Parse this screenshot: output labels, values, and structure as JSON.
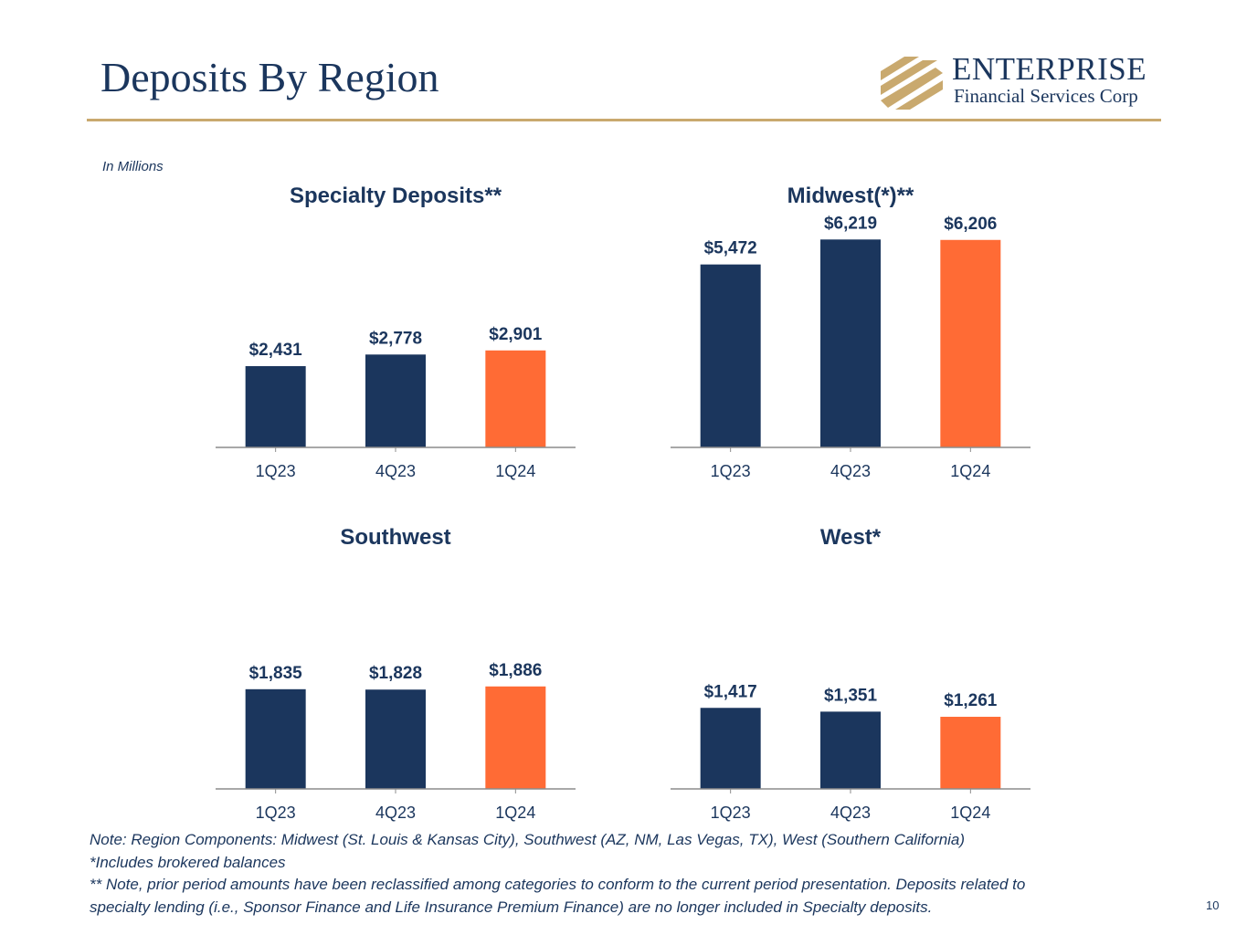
{
  "slide": {
    "title": "Deposits By Region",
    "units_label": "In Millions",
    "page_number": "10",
    "logo": {
      "name": "ENTERPRISE",
      "subtitle": "Financial Services Corp",
      "icon": "enterprise-logo-mark-icon",
      "colors": {
        "mark": "#c9a96e",
        "text": "#1b365d"
      }
    },
    "notes": [
      "Note: Region Components: Midwest (St. Louis & Kansas City), Southwest (AZ, NM, Las Vegas, TX), West (Southern California)",
      "*Includes brokered balances",
      "** Note, prior period amounts have been reclassified among categories to conform to the current period presentation. Deposits related to",
      "specialty lending (i.e., Sponsor Finance and Life Insurance Premium Finance) are no longer included in Specialty deposits."
    ]
  },
  "colors": {
    "navy": "#1b365d",
    "orange": "#ff6b35",
    "accent_rule": "#c9a96e",
    "axis": "#8c8c8c",
    "tick_text": "#1b365d"
  },
  "chart_data": [
    {
      "type": "bar",
      "title": "Specialty Deposits**",
      "categories": [
        "1Q23",
        "4Q23",
        "1Q24"
      ],
      "values": [
        2431,
        2778,
        2901
      ],
      "labels": [
        "$2,431",
        "$2,778",
        "$2,901"
      ],
      "ylim": [
        0,
        6500
      ],
      "grid": false,
      "legend": "none",
      "bar_colors": [
        "#1b365d",
        "#1b365d",
        "#ff6b35"
      ]
    },
    {
      "type": "bar",
      "title": "Midwest(*)**",
      "categories": [
        "1Q23",
        "4Q23",
        "1Q24"
      ],
      "values": [
        5472,
        6219,
        6206
      ],
      "labels": [
        "$5,472",
        "$6,219",
        "$6,206"
      ],
      "ylim": [
        0,
        6500
      ],
      "grid": false,
      "legend": "none",
      "bar_colors": [
        "#1b365d",
        "#1b365d",
        "#ff6b35"
      ]
    },
    {
      "type": "bar",
      "title": "Southwest",
      "categories": [
        "1Q23",
        "4Q23",
        "1Q24"
      ],
      "values": [
        1835,
        1828,
        1886
      ],
      "labels": [
        "$1,835",
        "$1,828",
        "$1,886"
      ],
      "ylim": [
        0,
        4000
      ],
      "grid": false,
      "legend": "none",
      "bar_colors": [
        "#1b365d",
        "#1b365d",
        "#ff6b35"
      ]
    },
    {
      "type": "bar",
      "title": "West*",
      "categories": [
        "1Q23",
        "4Q23",
        "1Q24"
      ],
      "values": [
        1417,
        1351,
        1261
      ],
      "labels": [
        "$1,417",
        "$1,351",
        "$1,261"
      ],
      "ylim": [
        0,
        3800
      ],
      "grid": false,
      "legend": "none",
      "bar_colors": [
        "#1b365d",
        "#1b365d",
        "#ff6b35"
      ]
    }
  ]
}
